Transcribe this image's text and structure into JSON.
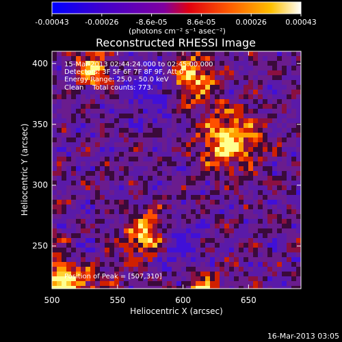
{
  "colorbar": {
    "ticks": [
      "-0.00043",
      "-0.00026",
      "-8.6e-05",
      "8.6e-05",
      "0.00026",
      "0.00043"
    ],
    "units_label": "(photons cm⁻² s⁻¹ asec⁻²)",
    "range": [
      -0.00043,
      0.00043
    ],
    "colormap": [
      "#0000ff",
      "#4000cc",
      "#8000a0",
      "#ff0000",
      "#ff9000",
      "#ffff80",
      "#ffffff"
    ]
  },
  "chart_data": {
    "type": "heatmap",
    "title": "Reconstructed RHESSI Image",
    "xlabel": "Heliocentric X (arcsec)",
    "ylabel": "Heliocentric Y (arcsec)",
    "xlim": [
      500,
      690
    ],
    "ylim": [
      215,
      410
    ],
    "x_ticks": [
      500,
      550,
      600,
      650
    ],
    "y_ticks": [
      250,
      300,
      350,
      400
    ],
    "annotations": [
      "15-Mar-2013 02:44:24.000 to 02:45:00.000",
      "Detectors: 3F 5F 6F 7F 8F 9F, Att 0",
      "Energy Range: 25.0 - 50.0 keV",
      "Clean    Total counts: 773."
    ],
    "peak_label": "Position of Peak = [507,310]",
    "peak": [
      507,
      310
    ]
  },
  "footer": {
    "timestamp": "16-Mar-2013 03:05"
  }
}
